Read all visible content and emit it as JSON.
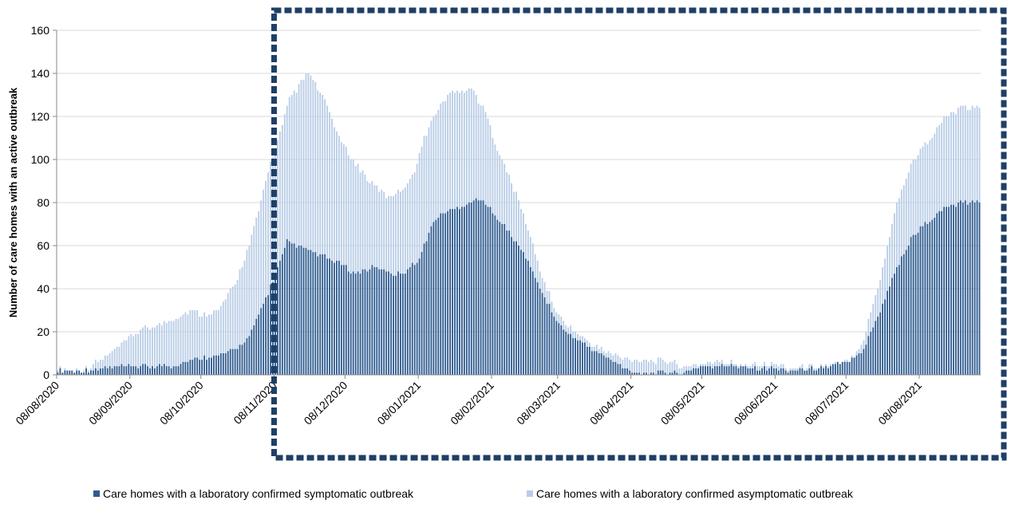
{
  "chart_data": {
    "type": "bar",
    "stacked": true,
    "title": "",
    "xlabel": "",
    "ylabel": "Number of care homes with an active outbreak",
    "ylim": [
      0,
      160
    ],
    "yticks": [
      0,
      20,
      40,
      60,
      80,
      100,
      120,
      140,
      160
    ],
    "grid": true,
    "legend_position": "bottom",
    "x_start_date": "2020-08-08",
    "x_end_date": "2021-09-02",
    "x_tick_labels": [
      "08/08/2020",
      "08/09/2020",
      "08/10/2020",
      "08/11/2020",
      "08/12/2020",
      "08/01/2021",
      "08/02/2021",
      "08/03/2021",
      "08/04/2021",
      "08/05/2021",
      "08/06/2021",
      "08/07/2021",
      "08/08/2021"
    ],
    "highlight_box": {
      "from_date": "2020-11-08",
      "to_date": "2021-09-02",
      "color": "#1f3f66"
    },
    "series": [
      {
        "name": "Care homes with a laboratory confirmed symptomatic outbreak",
        "color": "#2e5b8f",
        "points": [
          [
            "2020-08-08",
            2
          ],
          [
            "2020-08-20",
            2
          ],
          [
            "2020-08-28",
            3
          ],
          [
            "2020-09-08",
            4
          ],
          [
            "2020-09-25",
            4
          ],
          [
            "2020-10-01",
            6
          ],
          [
            "2020-10-08",
            8
          ],
          [
            "2020-10-15",
            9
          ],
          [
            "2020-10-22",
            12
          ],
          [
            "2020-10-28",
            18
          ],
          [
            "2020-11-01",
            28
          ],
          [
            "2020-11-05",
            38
          ],
          [
            "2020-11-08",
            47
          ],
          [
            "2020-11-11",
            55
          ],
          [
            "2020-11-13",
            62
          ],
          [
            "2020-11-17",
            60
          ],
          [
            "2020-11-22",
            58
          ],
          [
            "2020-11-28",
            55
          ],
          [
            "2020-12-05",
            52
          ],
          [
            "2020-12-12",
            47
          ],
          [
            "2020-12-20",
            50
          ],
          [
            "2020-12-28",
            47
          ],
          [
            "2021-01-02",
            48
          ],
          [
            "2021-01-08",
            54
          ],
          [
            "2021-01-12",
            66
          ],
          [
            "2021-01-15",
            73
          ],
          [
            "2021-01-22",
            77
          ],
          [
            "2021-01-30",
            80
          ],
          [
            "2021-02-02",
            82
          ],
          [
            "2021-02-08",
            76
          ],
          [
            "2021-02-15",
            66
          ],
          [
            "2021-02-22",
            55
          ],
          [
            "2021-03-01",
            38
          ],
          [
            "2021-03-08",
            23
          ],
          [
            "2021-03-15",
            17
          ],
          [
            "2021-03-22",
            12
          ],
          [
            "2021-03-30",
            7
          ],
          [
            "2021-04-05",
            3
          ],
          [
            "2021-04-10",
            1
          ],
          [
            "2021-04-30",
            1
          ],
          [
            "2021-05-05",
            3
          ],
          [
            "2021-05-08",
            4
          ],
          [
            "2021-05-25",
            4
          ],
          [
            "2021-06-01",
            3
          ],
          [
            "2021-06-08",
            3
          ],
          [
            "2021-06-15",
            2
          ],
          [
            "2021-06-25",
            3
          ],
          [
            "2021-07-01",
            4
          ],
          [
            "2021-07-08",
            6
          ],
          [
            "2021-07-15",
            12
          ],
          [
            "2021-07-22",
            30
          ],
          [
            "2021-07-29",
            50
          ],
          [
            "2021-08-05",
            65
          ],
          [
            "2021-08-12",
            72
          ],
          [
            "2021-08-19",
            78
          ],
          [
            "2021-08-26",
            80
          ],
          [
            "2021-09-02",
            80
          ]
        ]
      },
      {
        "name": "Care homes with a laboratory confirmed asymptomatic outbreak",
        "color": "#b9cde6",
        "points": [
          [
            "2020-08-08",
            3
          ],
          [
            "2020-08-14",
            2
          ],
          [
            "2020-08-20",
            3
          ],
          [
            "2020-08-28",
            8
          ],
          [
            "2020-09-03",
            13
          ],
          [
            "2020-09-08",
            18
          ],
          [
            "2020-09-15",
            22
          ],
          [
            "2020-09-22",
            24
          ],
          [
            "2020-09-29",
            28
          ],
          [
            "2020-10-03",
            30
          ],
          [
            "2020-10-08",
            28
          ],
          [
            "2020-10-15",
            30
          ],
          [
            "2020-10-22",
            42
          ],
          [
            "2020-10-28",
            60
          ],
          [
            "2020-11-01",
            76
          ],
          [
            "2020-11-05",
            95
          ],
          [
            "2020-11-08",
            105
          ],
          [
            "2020-11-11",
            115
          ],
          [
            "2020-11-14",
            128
          ],
          [
            "2020-11-18",
            134
          ],
          [
            "2020-11-22",
            140
          ],
          [
            "2020-11-25",
            135
          ],
          [
            "2020-11-30",
            125
          ],
          [
            "2020-12-05",
            110
          ],
          [
            "2020-12-12",
            98
          ],
          [
            "2020-12-18",
            90
          ],
          [
            "2020-12-25",
            83
          ],
          [
            "2020-12-30",
            85
          ],
          [
            "2021-01-05",
            92
          ],
          [
            "2021-01-10",
            110
          ],
          [
            "2021-01-15",
            122
          ],
          [
            "2021-01-20",
            130
          ],
          [
            "2021-01-25",
            132
          ],
          [
            "2021-01-30",
            133
          ],
          [
            "2021-02-05",
            122
          ],
          [
            "2021-02-10",
            105
          ],
          [
            "2021-02-15",
            92
          ],
          [
            "2021-02-20",
            78
          ],
          [
            "2021-02-25",
            60
          ],
          [
            "2021-03-01",
            45
          ],
          [
            "2021-03-08",
            27
          ],
          [
            "2021-03-15",
            20
          ],
          [
            "2021-03-22",
            14
          ],
          [
            "2021-03-30",
            10
          ],
          [
            "2021-04-05",
            7
          ],
          [
            "2021-04-15",
            7
          ],
          [
            "2021-04-25",
            6
          ],
          [
            "2021-05-01",
            3
          ],
          [
            "2021-05-05",
            5
          ],
          [
            "2021-05-15",
            6
          ],
          [
            "2021-05-25",
            5
          ],
          [
            "2021-06-08",
            5
          ],
          [
            "2021-06-15",
            3
          ],
          [
            "2021-06-25",
            4
          ],
          [
            "2021-07-05",
            5
          ],
          [
            "2021-07-10",
            8
          ],
          [
            "2021-07-15",
            17
          ],
          [
            "2021-07-22",
            45
          ],
          [
            "2021-07-29",
            80
          ],
          [
            "2021-08-05",
            100
          ],
          [
            "2021-08-12",
            110
          ],
          [
            "2021-08-19",
            120
          ],
          [
            "2021-08-26",
            124
          ],
          [
            "2021-09-02",
            124
          ]
        ]
      }
    ]
  }
}
